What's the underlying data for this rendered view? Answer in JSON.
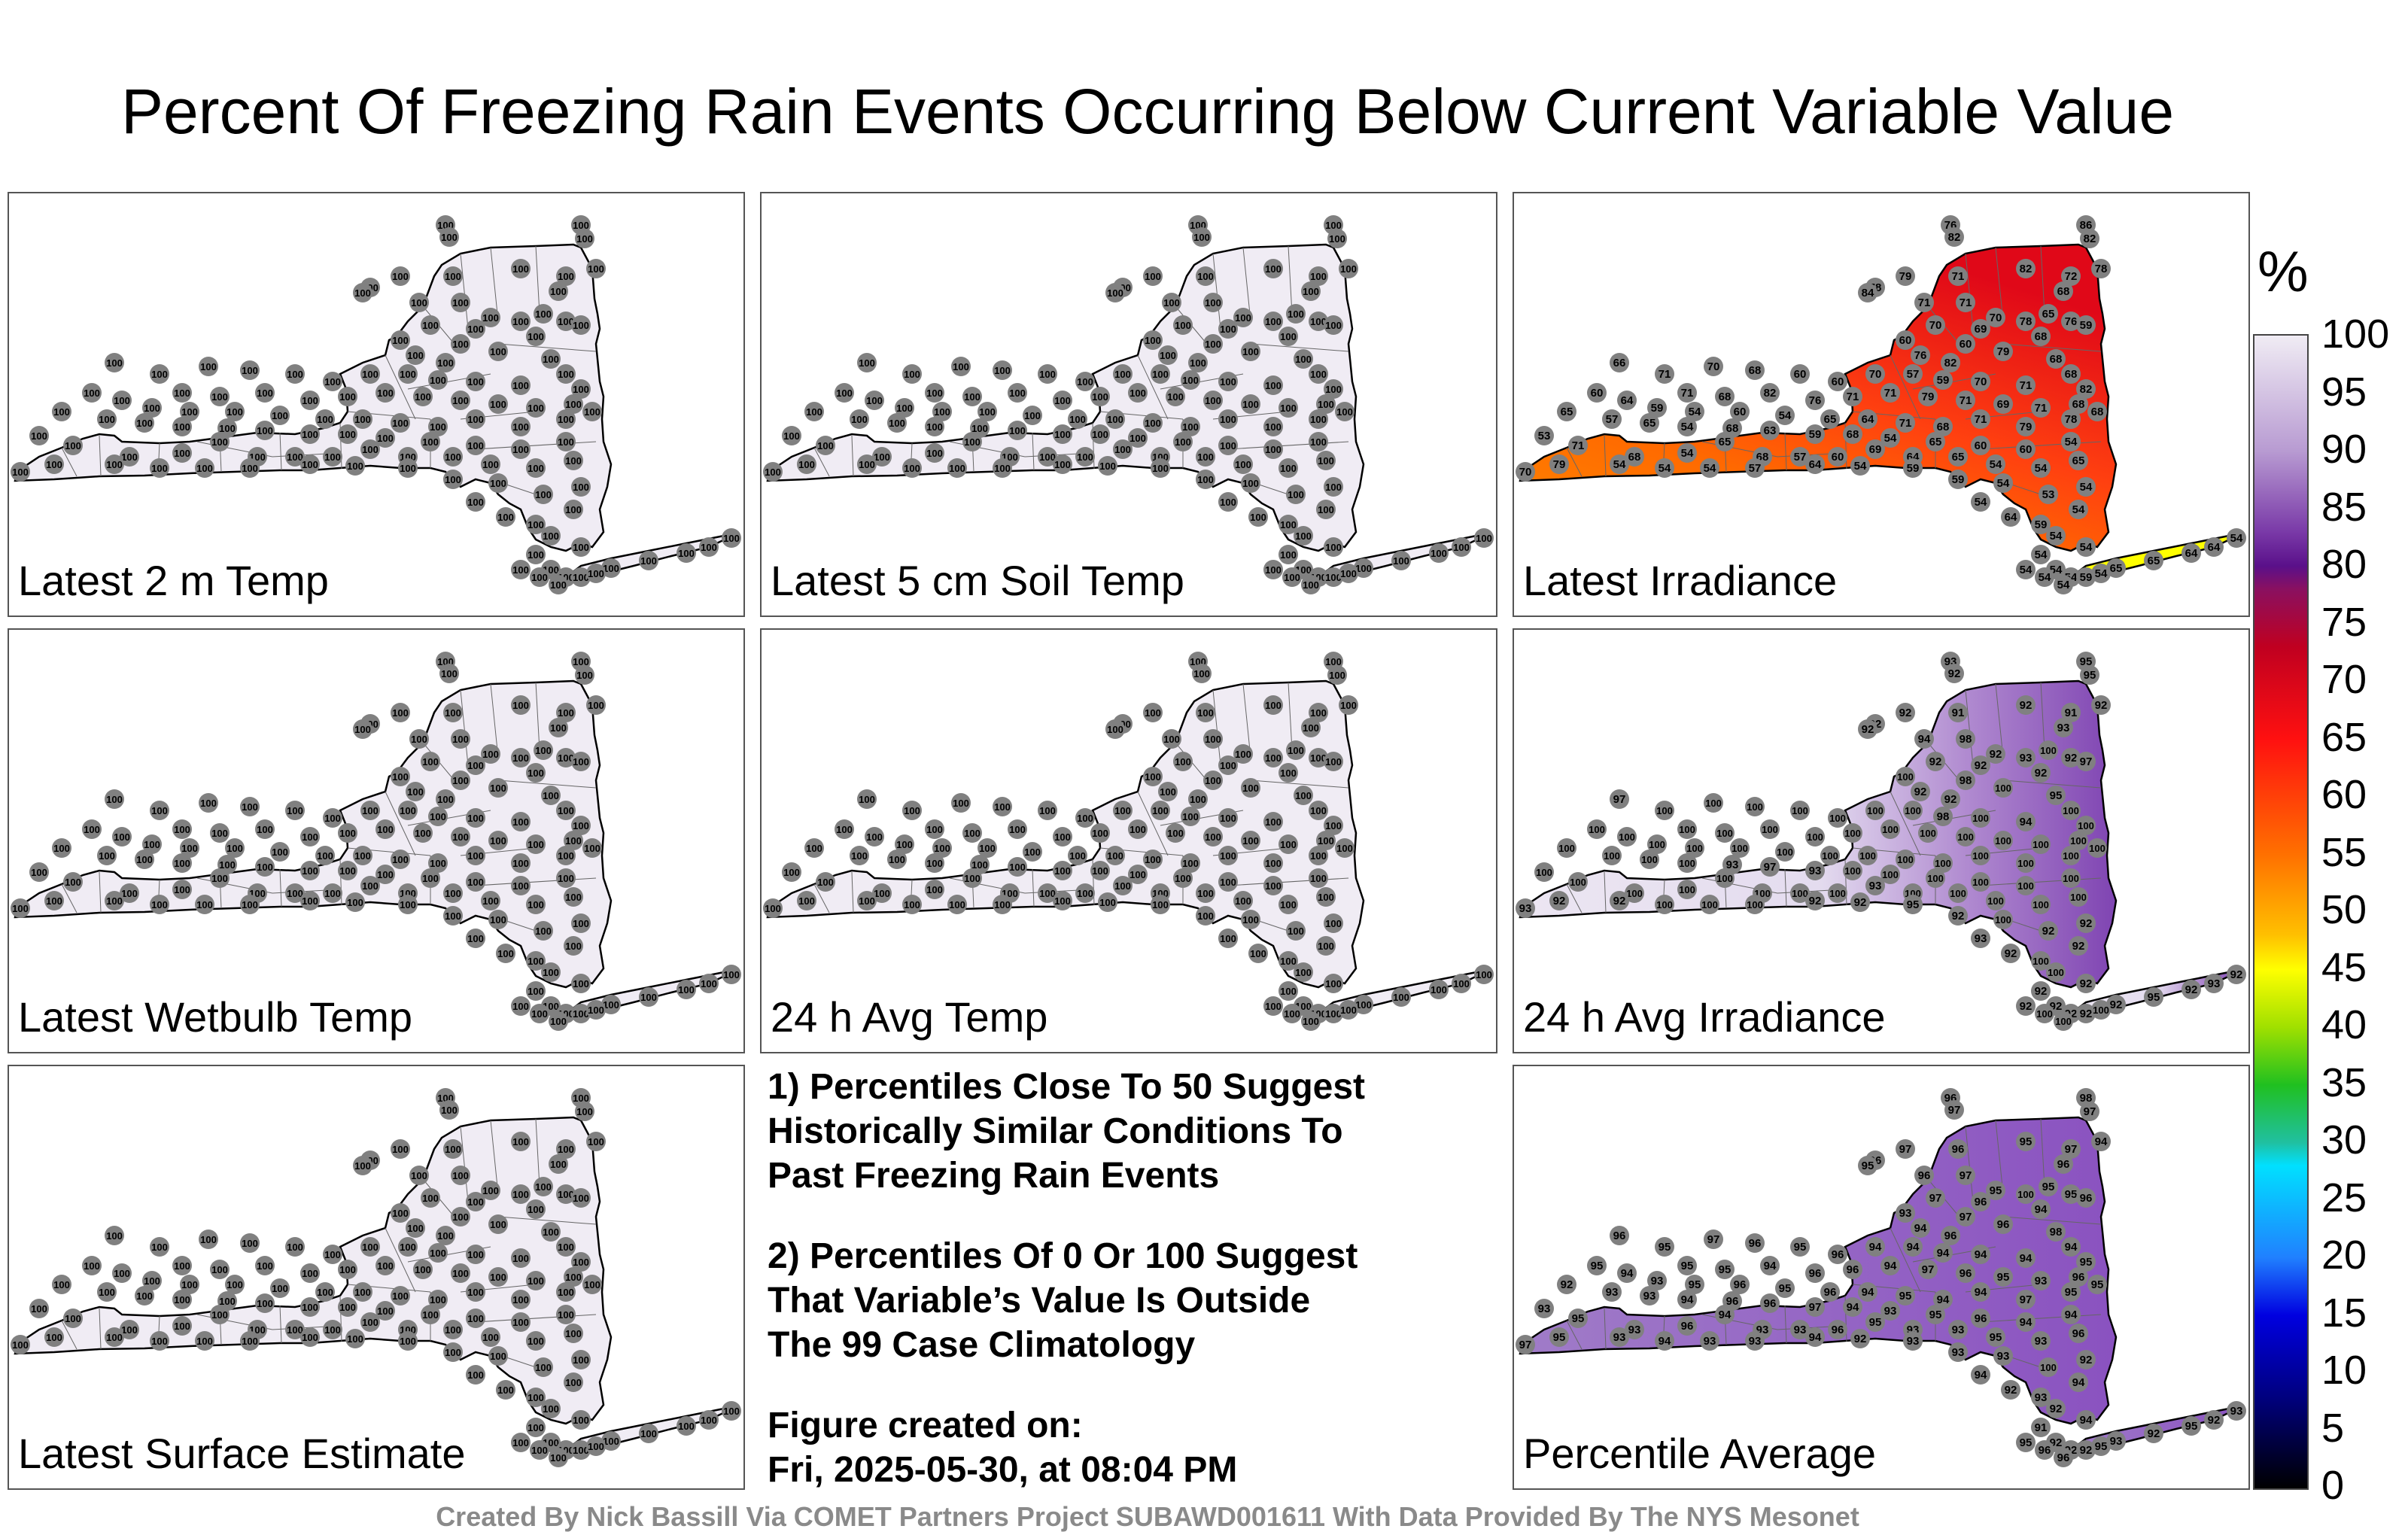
{
  "title": "Percent Of Freezing Rain Events Occurring Below Current Variable Value",
  "colors": {
    "background": "#ffffff",
    "region_fill_100": "#f0ecf4",
    "station_marker": "#808080",
    "state_outline": "#000000",
    "county_lines": "#666666",
    "irradiance_low": "#ffff00",
    "irradiance_mid": "#ff8000",
    "irradiance_high": "#ff1010",
    "percentile_high": "#8a52c0"
  },
  "panels": [
    {
      "label": "Latest 2 m Temp",
      "fill": "#f0ecf4",
      "values": [
        100,
        100,
        100,
        100,
        100,
        100,
        100,
        100,
        100,
        100,
        100,
        100,
        100,
        100,
        100,
        100,
        100,
        100,
        100,
        100,
        100,
        100,
        100,
        100,
        100,
        100,
        100,
        100,
        100,
        100,
        100,
        100,
        100,
        100,
        100,
        100,
        100,
        100,
        100,
        100,
        100,
        100,
        100,
        100,
        100,
        100,
        100,
        100,
        100,
        100,
        100,
        100,
        100,
        100,
        100,
        100,
        100,
        100,
        100,
        100,
        100,
        100,
        100,
        100,
        100,
        100,
        100,
        100,
        100,
        100,
        100,
        100,
        100,
        100,
        100,
        100,
        100,
        100,
        100,
        100,
        100,
        100,
        100,
        100,
        100,
        100,
        100,
        100,
        100,
        100,
        100,
        100,
        100,
        100,
        100,
        100,
        100,
        100,
        100,
        100,
        100,
        100,
        100,
        100,
        100,
        100,
        100,
        100,
        100,
        100,
        100,
        100,
        100,
        100,
        100,
        100,
        100,
        100,
        100,
        100,
        100,
        100,
        100,
        100,
        100,
        100
      ]
    },
    {
      "label": "Latest 5 cm Soil Temp",
      "fill": "#f0ecf4",
      "values": [
        100,
        100,
        100,
        100,
        100,
        100,
        100,
        100,
        100,
        100,
        100,
        100,
        100,
        100,
        100,
        100,
        100,
        100,
        100,
        100,
        100,
        100,
        100,
        100,
        100,
        100,
        100,
        100,
        100,
        100,
        100,
        100,
        100,
        100,
        100,
        100,
        100,
        100,
        100,
        100,
        100,
        100,
        100,
        100,
        100,
        100,
        100,
        100,
        100,
        100,
        100,
        100,
        100,
        100,
        100,
        100,
        100,
        100,
        100,
        100,
        100,
        100,
        100,
        100,
        100,
        100,
        100,
        100,
        100,
        100,
        100,
        100,
        100,
        100,
        100,
        100,
        100,
        100,
        100,
        100,
        100,
        100,
        100,
        100,
        100,
        100,
        100,
        100,
        100,
        100,
        100,
        100,
        100,
        100,
        100,
        100,
        100,
        100,
        100,
        100,
        100,
        100,
        100,
        100,
        100,
        100,
        100,
        100,
        100,
        100,
        100,
        100,
        100,
        100,
        100,
        100,
        100,
        100,
        100,
        100,
        100,
        100,
        100,
        100,
        100,
        100
      ]
    },
    {
      "label": "Latest Irradiance",
      "fill": "gradient-irradiance",
      "values": [
        76,
        86,
        82,
        82,
        78,
        79,
        71,
        82,
        78,
        72,
        68,
        84,
        71,
        71,
        70,
        78,
        65,
        76,
        70,
        69,
        59,
        68,
        60,
        60,
        79,
        76,
        82,
        68,
        66,
        71,
        70,
        68,
        60,
        60,
        70,
        57,
        59,
        70,
        71,
        68,
        82,
        71,
        68,
        82,
        76,
        71,
        71,
        79,
        71,
        69,
        71,
        68,
        60,
        64,
        59,
        54,
        60,
        54,
        65,
        64,
        71,
        68,
        71,
        79,
        78,
        68,
        65,
        57,
        65,
        54,
        68,
        63,
        59,
        68,
        54,
        65,
        60,
        60,
        54,
        53,
        71,
        68,
        54,
        65,
        68,
        57,
        60,
        69,
        64,
        65,
        54,
        54,
        65,
        70,
        79,
        54,
        54,
        54,
        57,
        64,
        54,
        59,
        59,
        54,
        53,
        54,
        54,
        64,
        59,
        54,
        54,
        54,
        54,
        54,
        54,
        59,
        65,
        65,
        64,
        64,
        54,
        54,
        54,
        54,
        54,
        68
      ]
    },
    {
      "label": "Latest Wetbulb Temp",
      "fill": "#f0ecf4",
      "values": [
        100,
        100,
        100,
        100,
        100,
        100,
        100,
        100,
        100,
        100,
        100,
        100,
        100,
        100,
        100,
        100,
        100,
        100,
        100,
        100,
        100,
        100,
        100,
        100,
        100,
        100,
        100,
        100,
        100,
        100,
        100,
        100,
        100,
        100,
        100,
        100,
        100,
        100,
        100,
        100,
        100,
        100,
        100,
        100,
        100,
        100,
        100,
        100,
        100,
        100,
        100,
        100,
        100,
        100,
        100,
        100,
        100,
        100,
        100,
        100,
        100,
        100,
        100,
        100,
        100,
        100,
        100,
        100,
        100,
        100,
        100,
        100,
        100,
        100,
        100,
        100,
        100,
        100,
        100,
        100,
        100,
        100,
        100,
        100,
        100,
        100,
        100,
        100,
        100,
        100,
        100,
        100,
        100,
        100,
        100,
        100,
        100,
        100,
        100,
        100,
        100,
        100,
        100,
        100,
        100,
        100,
        100,
        100,
        100,
        100,
        100,
        100,
        100,
        100,
        100,
        100,
        100,
        100,
        100,
        100,
        100,
        100,
        100,
        100,
        100,
        100
      ]
    },
    {
      "label": "24 h Avg Temp",
      "fill": "#f0ecf4",
      "values": [
        100,
        100,
        100,
        100,
        100,
        100,
        100,
        100,
        100,
        100,
        100,
        100,
        100,
        100,
        100,
        100,
        100,
        100,
        100,
        100,
        100,
        100,
        100,
        100,
        100,
        100,
        100,
        100,
        100,
        100,
        100,
        100,
        100,
        100,
        100,
        100,
        100,
        100,
        100,
        100,
        100,
        100,
        100,
        100,
        100,
        100,
        100,
        100,
        100,
        100,
        100,
        100,
        100,
        100,
        100,
        100,
        100,
        100,
        100,
        100,
        100,
        100,
        100,
        100,
        100,
        100,
        100,
        100,
        100,
        100,
        100,
        100,
        100,
        100,
        100,
        100,
        100,
        100,
        100,
        100,
        100,
        100,
        100,
        100,
        100,
        100,
        100,
        100,
        100,
        100,
        100,
        100,
        100,
        100,
        100,
        100,
        100,
        100,
        100,
        100,
        100,
        100,
        100,
        100,
        100,
        100,
        100,
        100,
        100,
        100,
        100,
        100,
        100,
        100,
        100,
        100,
        100,
        100,
        100,
        100,
        100,
        100,
        100,
        100,
        100,
        100
      ]
    },
    {
      "label": "24 h Avg Irradiance",
      "fill": "gradient-avg-irradiance",
      "values": [
        93,
        95,
        95,
        92,
        92,
        92,
        91,
        92,
        92,
        91,
        93,
        92,
        94,
        98,
        92,
        93,
        100,
        92,
        92,
        92,
        97,
        92,
        100,
        98,
        100,
        92,
        92,
        95,
        97,
        100,
        100,
        100,
        100,
        100,
        100,
        100,
        98,
        100,
        94,
        100,
        100,
        100,
        100,
        100,
        100,
        100,
        100,
        100,
        100,
        100,
        100,
        100,
        100,
        100,
        100,
        100,
        100,
        100,
        100,
        100,
        100,
        100,
        100,
        100,
        100,
        100,
        100,
        100,
        100,
        100,
        93,
        97,
        93,
        100,
        100,
        100,
        100,
        100,
        100,
        100,
        100,
        100,
        100,
        100,
        100,
        100,
        100,
        93,
        100,
        100,
        100,
        100,
        100,
        93,
        92,
        92,
        100,
        100,
        100,
        92,
        92,
        95,
        92,
        100,
        92,
        92,
        93,
        92,
        100,
        92,
        100,
        92,
        92,
        92,
        92,
        92,
        92,
        95,
        92,
        93,
        92,
        92,
        100,
        100,
        100,
        100
      ]
    },
    {
      "label": "Percentile Average",
      "fill": "gradient-percentile",
      "values": [
        96,
        98,
        97,
        97,
        96,
        97,
        96,
        95,
        94,
        97,
        96,
        95,
        96,
        97,
        95,
        100,
        95,
        95,
        97,
        96,
        96,
        94,
        93,
        97,
        96,
        94,
        96,
        98,
        96,
        95,
        97,
        96,
        95,
        96,
        94,
        94,
        94,
        94,
        94,
        94,
        95,
        95,
        95,
        94,
        96,
        96,
        94,
        97,
        96,
        95,
        93,
        96,
        95,
        94,
        93,
        95,
        96,
        95,
        96,
        94,
        95,
        94,
        94,
        97,
        95,
        95,
        92,
        93,
        93,
        94,
        96,
        96,
        97,
        94,
        93,
        95,
        96,
        94,
        94,
        93,
        95,
        93,
        96,
        94,
        93,
        93,
        96,
        95,
        93,
        93,
        95,
        93,
        96,
        97,
        95,
        93,
        94,
        93,
        93,
        94,
        92,
        93,
        93,
        93,
        100,
        92,
        94,
        92,
        93,
        94,
        92,
        94,
        91,
        92,
        92,
        92,
        93,
        92,
        95,
        92,
        93,
        95,
        96,
        96,
        95,
        94
      ]
    }
  ],
  "notes": {
    "note1": [
      "1) Percentiles Close To 50 Suggest",
      "Historically Similar Conditions To",
      "Past Freezing Rain Events"
    ],
    "note2": [
      "2) Percentiles Of 0 Or 100 Suggest",
      "That Variable’s Value Is Outside",
      "The 99 Case Climatology"
    ],
    "created": [
      "Figure created on:",
      "Fri, 2025-05-30, at 08:04 PM"
    ]
  },
  "colorbar": {
    "unit": "%",
    "ticks": [
      "100",
      "95",
      "90",
      "85",
      "80",
      "75",
      "70",
      "65",
      "60",
      "55",
      "50",
      "45",
      "40",
      "35",
      "30",
      "25",
      "20",
      "15",
      "10",
      "5",
      "0"
    ]
  },
  "credit": "Created By Nick Bassill Via COMET Partners Project SUBAWD001611 With Data Provided By The NYS Mesonet"
}
